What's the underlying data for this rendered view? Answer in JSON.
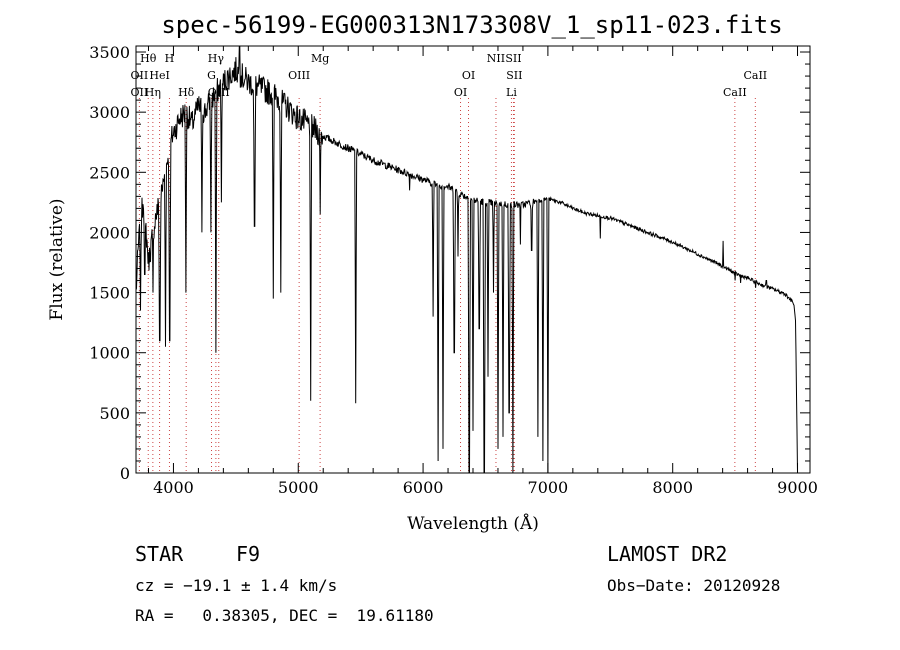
{
  "chart_data": {
    "type": "line",
    "title": "spec-56199-EG000313N173308V_1_sp11-023.fits",
    "xlabel": "Wavelength (Å)",
    "ylabel": "Flux (relative)",
    "xlim": [
      3700,
      9100
    ],
    "ylim": [
      0,
      3550
    ],
    "xticks": [
      4000,
      5000,
      6000,
      7000,
      8000,
      9000
    ],
    "yticks": [
      0,
      500,
      1000,
      1500,
      2000,
      2500,
      3000,
      3500
    ],
    "grid": false,
    "line_color": "#000000",
    "marker_color": "#cc4444",
    "continuum": [
      [
        3700,
        1500
      ],
      [
        3720,
        1900
      ],
      [
        3760,
        2300
      ],
      [
        3800,
        1750
      ],
      [
        3850,
        2100
      ],
      [
        3900,
        2300
      ],
      [
        3950,
        2600
      ],
      [
        3990,
        2800
      ],
      [
        4050,
        2950
      ],
      [
        4100,
        3000
      ],
      [
        4150,
        2900
      ],
      [
        4200,
        3050
      ],
      [
        4250,
        3000
      ],
      [
        4300,
        3100
      ],
      [
        4400,
        3250
      ],
      [
        4500,
        3350
      ],
      [
        4600,
        3250
      ],
      [
        4700,
        3200
      ],
      [
        4800,
        3150
      ],
      [
        4900,
        3050
      ],
      [
        5000,
        2950
      ],
      [
        5100,
        2880
      ],
      [
        5200,
        2800
      ],
      [
        5300,
        2750
      ],
      [
        5400,
        2700
      ],
      [
        5500,
        2650
      ],
      [
        5600,
        2600
      ],
      [
        5700,
        2560
      ],
      [
        5800,
        2520
      ],
      [
        5900,
        2480
      ],
      [
        6000,
        2440
      ],
      [
        6100,
        2400
      ],
      [
        6200,
        2380
      ],
      [
        6300,
        2320
      ],
      [
        6400,
        2270
      ],
      [
        6500,
        2250
      ],
      [
        6600,
        2240
      ],
      [
        6700,
        2230
      ],
      [
        6800,
        2230
      ],
      [
        6900,
        2260
      ],
      [
        7000,
        2280
      ],
      [
        7100,
        2250
      ],
      [
        7200,
        2200
      ],
      [
        7300,
        2160
      ],
      [
        7400,
        2140
      ],
      [
        7500,
        2120
      ],
      [
        7600,
        2080
      ],
      [
        7700,
        2040
      ],
      [
        7800,
        2000
      ],
      [
        7900,
        1960
      ],
      [
        8000,
        1920
      ],
      [
        8100,
        1870
      ],
      [
        8200,
        1820
      ],
      [
        8300,
        1770
      ],
      [
        8400,
        1720
      ],
      [
        8500,
        1660
      ],
      [
        8600,
        1620
      ],
      [
        8700,
        1570
      ],
      [
        8800,
        1530
      ],
      [
        8900,
        1490
      ],
      [
        8970,
        1410
      ],
      [
        8985,
        1250
      ],
      [
        9000,
        0
      ]
    ],
    "absorption_features": [
      [
        3735,
        1350
      ],
      [
        3770,
        1650
      ],
      [
        3835,
        1500
      ],
      [
        3890,
        1100
      ],
      [
        3935,
        1050
      ],
      [
        3970,
        1100
      ],
      [
        4101,
        1500
      ],
      [
        4227,
        2000
      ],
      [
        4300,
        2000
      ],
      [
        4340,
        1000
      ],
      [
        4383,
        2250
      ],
      [
        4650,
        2050
      ],
      [
        4800,
        1450
      ],
      [
        4861,
        1500
      ],
      [
        5100,
        600
      ],
      [
        5175,
        2150
      ],
      [
        5460,
        580
      ],
      [
        5893,
        2350
      ],
      [
        6080,
        1300
      ],
      [
        6120,
        100
      ],
      [
        6160,
        200
      ],
      [
        6250,
        1000
      ],
      [
        6280,
        1800
      ],
      [
        6370,
        0
      ],
      [
        6400,
        350
      ],
      [
        6450,
        1200
      ],
      [
        6490,
        0
      ],
      [
        6520,
        800
      ],
      [
        6563,
        1500
      ],
      [
        6600,
        200
      ],
      [
        6640,
        300
      ],
      [
        6690,
        500
      ],
      [
        6720,
        0
      ],
      [
        6780,
        1900
      ],
      [
        6870,
        1850
      ],
      [
        6920,
        300
      ],
      [
        6960,
        100
      ],
      [
        7000,
        0
      ],
      [
        7420,
        1950
      ],
      [
        8500,
        1600
      ],
      [
        8545,
        1580
      ],
      [
        8665,
        1540
      ]
    ],
    "emission_features": [
      [
        4530,
        3580
      ],
      [
        8405,
        1930
      ],
      [
        8750,
        1600
      ]
    ],
    "line_markers": [
      {
        "label": "Hθ",
        "wavelength": 3798,
        "row": 0
      },
      {
        "label": "H",
        "wavelength": 3968,
        "row": 0
      },
      {
        "label": "Hγ",
        "wavelength": 4340,
        "row": 0
      },
      {
        "label": "Mg",
        "wavelength": 5175,
        "row": 0
      },
      {
        "label": "NII",
        "wavelength": 6584,
        "row": 0
      },
      {
        "label": "SII",
        "wavelength": 6724,
        "row": 0
      },
      {
        "label": "OII",
        "wavelength": 3727,
        "row": 1
      },
      {
        "label": "HeI",
        "wavelength": 3889,
        "row": 1
      },
      {
        "label": "G",
        "wavelength": 4305,
        "row": 1
      },
      {
        "label": "OIII",
        "wavelength": 5007,
        "row": 1
      },
      {
        "label": "OI",
        "wavelength": 6364,
        "row": 1
      },
      {
        "label": "SII",
        "wavelength": 6731,
        "row": 1
      },
      {
        "label": "CaII",
        "wavelength": 8662,
        "row": 1
      },
      {
        "label": "OII",
        "wavelength": 3727,
        "row": 2
      },
      {
        "label": "Hη",
        "wavelength": 3835,
        "row": 2
      },
      {
        "label": "Hδ",
        "wavelength": 4102,
        "row": 2
      },
      {
        "label": "OIII",
        "wavelength": 4363,
        "row": 2
      },
      {
        "label": "OI",
        "wavelength": 6300,
        "row": 2
      },
      {
        "label": "Li",
        "wavelength": 6708,
        "row": 2
      },
      {
        "label": "CaII",
        "wavelength": 8498,
        "row": 2
      }
    ],
    "marker_line_wavelengths": [
      3727,
      3798,
      3835,
      3889,
      3968,
      4102,
      4305,
      4340,
      4363,
      5007,
      5175,
      6300,
      6364,
      6584,
      6708,
      6724,
      6731,
      8498,
      8662
    ]
  },
  "info": {
    "object_class": "STAR",
    "subclass": "F9",
    "survey": "LAMOST DR2",
    "redshift": "cz = −19.1 ± 1.4 km/s",
    "obs_date": "Obs−Date: 20120928",
    "coords": "RA =   0.38305, DEC =  19.61180"
  }
}
